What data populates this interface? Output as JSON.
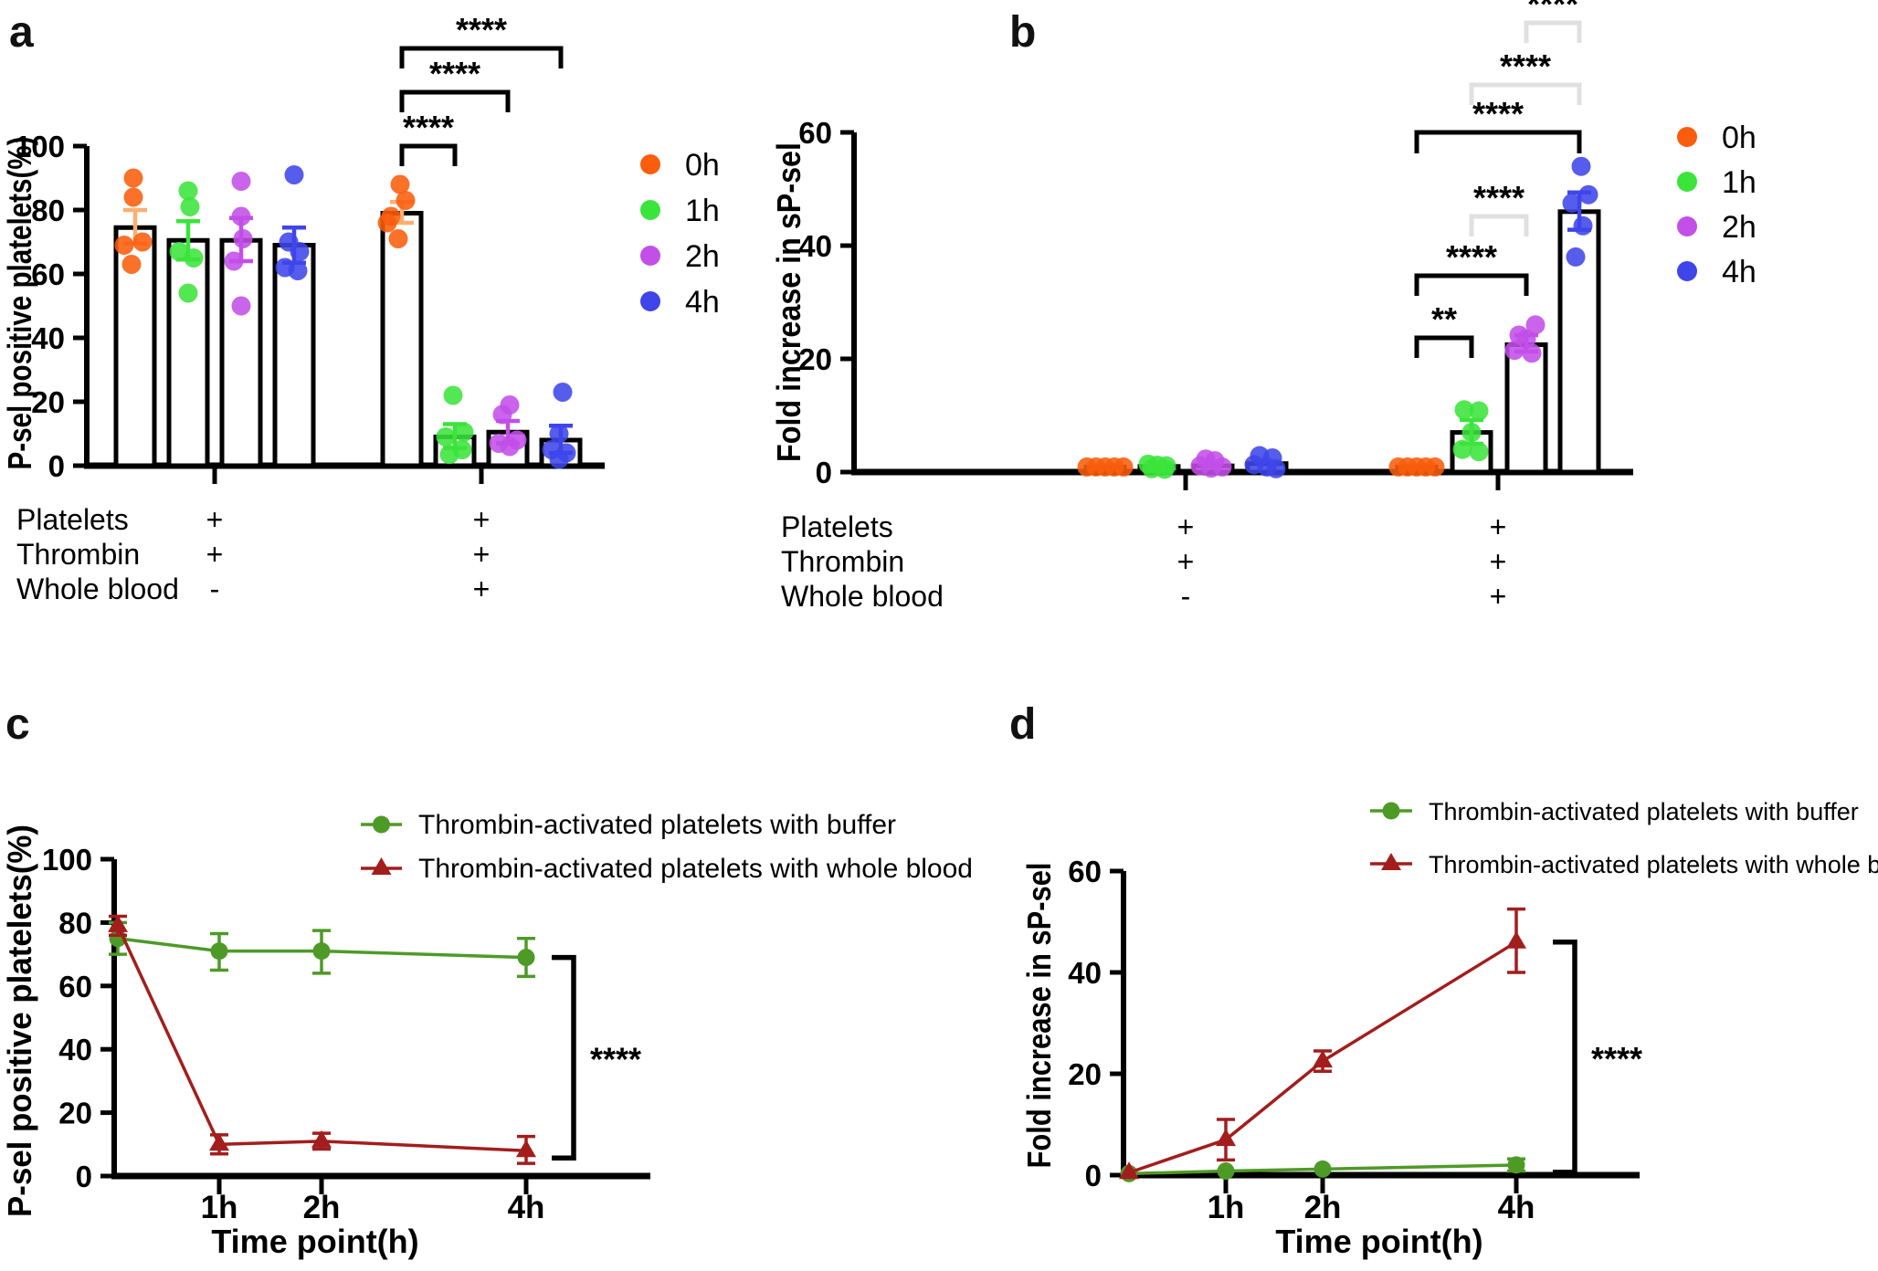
{
  "figure_title": "Platelet P-selectin figure",
  "chart_data": [
    {
      "id": "a",
      "panel_label": "a",
      "type": "bar",
      "ylabel": "P-sel positive platelets(%)",
      "ylim": [
        0,
        100
      ],
      "yticks": [
        0,
        20,
        40,
        60,
        80,
        100
      ],
      "legend": [
        {
          "label": "0h",
          "color": "#F95D0D"
        },
        {
          "label": "1h",
          "color": "#3BE43B"
        },
        {
          "label": "2h",
          "color": "#C24FE8"
        },
        {
          "label": "4h",
          "color": "#3F45E9"
        }
      ],
      "groups": [
        {
          "bars": [
            {
              "time": "0h",
              "color": "#F95D0D",
              "mean": 74.5,
              "err": [
                69.5,
                80
              ],
              "points": [
                [
                  -2,
                  90
                ],
                [
                  -2,
                  84
                ],
                [
                  -12,
                  69
                ],
                [
                  8,
                  70
                ],
                [
                  -4,
                  63
                ]
              ]
            },
            {
              "time": "1h",
              "color": "#3BE43B",
              "mean": 70.5,
              "err": [
                64.5,
                76.5
              ],
              "points": [
                [
                  0,
                  86
                ],
                [
                  2,
                  81
                ],
                [
                  -10,
                  67
                ],
                [
                  6,
                  65
                ],
                [
                  0,
                  54
                ]
              ]
            },
            {
              "time": "2h",
              "color": "#C24FE8",
              "mean": 70.5,
              "err": [
                64,
                77.5
              ],
              "points": [
                [
                  0,
                  89
                ],
                [
                  0,
                  78
                ],
                [
                  2,
                  71
                ],
                [
                  -8,
                  64
                ],
                [
                  0,
                  50
                ]
              ]
            },
            {
              "time": "4h",
              "color": "#3F45E9",
              "mean": 69,
              "err": [
                63.5,
                74.5
              ],
              "points": [
                [
                  0,
                  91
                ],
                [
                  -6,
                  70
                ],
                [
                  6,
                  67
                ],
                [
                  -10,
                  62
                ],
                [
                  4,
                  61
                ]
              ]
            }
          ]
        },
        {
          "bars": [
            {
              "time": "0h",
              "color": "#F95D0D",
              "mean": 79,
              "err": [
                76,
                82.5
              ],
              "points": [
                [
                  -2,
                  88
                ],
                [
                  4,
                  83
                ],
                [
                  -12,
                  78
                ],
                [
                  -16,
                  76
                ],
                [
                  -4,
                  71
                ]
              ]
            },
            {
              "time": "1h",
              "color": "#3BE43B",
              "mean": 9,
              "err": [
                5.5,
                13
              ],
              "points": [
                [
                  -2,
                  22
                ],
                [
                  10,
                  10.5
                ],
                [
                  -10,
                  9
                ],
                [
                  8,
                  5
                ],
                [
                  -6,
                  3.5
                ]
              ]
            },
            {
              "time": "2h",
              "color": "#C24FE8",
              "mean": 10.5,
              "err": [
                7,
                14
              ],
              "points": [
                [
                  2,
                  19
                ],
                [
                  -6,
                  16
                ],
                [
                  10,
                  8
                ],
                [
                  -10,
                  7
                ],
                [
                  2,
                  6
                ]
              ]
            },
            {
              "time": "4h",
              "color": "#3F45E9",
              "mean": 8,
              "err": [
                4,
                12.5
              ],
              "points": [
                [
                  2,
                  23
                ],
                [
                  -2,
                  10
                ],
                [
                  -10,
                  5
                ],
                [
                  6,
                  4
                ],
                [
                  -2,
                  2
                ]
              ]
            }
          ]
        }
      ],
      "conditions": [
        {
          "label": "Platelets",
          "values": [
            "+",
            "+"
          ]
        },
        {
          "label": "Thrombin",
          "values": [
            "+",
            "+"
          ]
        },
        {
          "label": "Whole blood",
          "values": [
            "-",
            "+"
          ]
        }
      ],
      "comparisons": [
        {
          "group": 1,
          "from": 0,
          "to": 1,
          "label": "****",
          "gray": false
        },
        {
          "group": 1,
          "from": 0,
          "to": 2,
          "label": "****",
          "gray": false
        },
        {
          "group": 1,
          "from": 0,
          "to": 3,
          "label": "****",
          "gray": false
        }
      ]
    },
    {
      "id": "b",
      "panel_label": "b",
      "type": "bar",
      "ylabel": "Fold increase in sP-sel",
      "ylim": [
        0,
        60
      ],
      "yticks": [
        0,
        20,
        40,
        60
      ],
      "legend": [
        {
          "label": "0h",
          "color": "#F95D0D"
        },
        {
          "label": "1h",
          "color": "#3BE43B"
        },
        {
          "label": "2h",
          "color": "#C24FE8"
        },
        {
          "label": "4h",
          "color": "#3F45E9"
        }
      ],
      "groups": [
        {
          "bars": [
            {
              "time": "0h",
              "color": "#F95D0D",
              "mean": 0.9,
              "err": null,
              "points": [
                [
                  -20,
                  0.9
                ],
                [
                  -10,
                  0.9
                ],
                [
                  0,
                  0.9
                ],
                [
                  10,
                  0.9
                ],
                [
                  20,
                  0.9
                ]
              ]
            },
            {
              "time": "1h",
              "color": "#3BE43B",
              "mean": 1.0,
              "err": null,
              "points": [
                [
                  -12,
                  1.4
                ],
                [
                  -2,
                  1.2
                ],
                [
                  8,
                  1.1
                ],
                [
                  -8,
                  0.6
                ],
                [
                  6,
                  0.5
                ]
              ]
            },
            {
              "time": "2h",
              "color": "#C24FE8",
              "mean": 1.1,
              "err": null,
              "points": [
                [
                  -8,
                  2.3
                ],
                [
                  2,
                  2.0
                ],
                [
                  -14,
                  1.1
                ],
                [
                  10,
                  0.9
                ],
                [
                  -2,
                  0.7
                ]
              ]
            },
            {
              "time": "4h",
              "color": "#3F45E9",
              "mean": 1.5,
              "err": null,
              "points": [
                [
                  -8,
                  2.9
                ],
                [
                  6,
                  2.5
                ],
                [
                  -14,
                  1.3
                ],
                [
                  0,
                  0.9
                ],
                [
                  10,
                  0.6
                ]
              ]
            }
          ]
        },
        {
          "bars": [
            {
              "time": "0h",
              "color": "#F95D0D",
              "mean": 0.9,
              "err": null,
              "points": [
                [
                  -20,
                  0.9
                ],
                [
                  -10,
                  0.9
                ],
                [
                  0,
                  0.9
                ],
                [
                  10,
                  0.9
                ],
                [
                  20,
                  0.9
                ]
              ]
            },
            {
              "time": "1h",
              "color": "#3BE43B",
              "mean": 7,
              "err": [
                5,
                9.2
              ],
              "points": [
                [
                  -8,
                  11
                ],
                [
                  8,
                  10.8
                ],
                [
                  0,
                  7
                ],
                [
                  -10,
                  4
                ],
                [
                  8,
                  3.6
                ]
              ]
            },
            {
              "time": "2h",
              "color": "#C24FE8",
              "mean": 22.5,
              "err": [
                21.3,
                24.2
              ],
              "points": [
                [
                  10,
                  26
                ],
                [
                  -8,
                  24.2
                ],
                [
                  0,
                  23.5
                ],
                [
                  -13,
                  21.5
                ],
                [
                  6,
                  21
                ]
              ]
            },
            {
              "time": "4h",
              "color": "#3F45E9",
              "mean": 46,
              "err": [
                42.8,
                49.4
              ],
              "points": [
                [
                  2,
                  54
                ],
                [
                  10,
                  49
                ],
                [
                  -8,
                  47.5
                ],
                [
                  4,
                  43.5
                ],
                [
                  -4,
                  38
                ]
              ]
            }
          ]
        }
      ],
      "conditions": [
        {
          "label": "Platelets",
          "values": [
            "+",
            "+"
          ]
        },
        {
          "label": "Thrombin",
          "values": [
            "+",
            "+"
          ]
        },
        {
          "label": "Whole blood",
          "values": [
            "-",
            "+"
          ]
        }
      ],
      "comparisons": [
        {
          "group": 1,
          "from": 0,
          "to": 1,
          "label": "**",
          "gray": false
        },
        {
          "group": 1,
          "from": 0,
          "to": 2,
          "label": "****",
          "gray": false
        },
        {
          "group": 1,
          "from": 0,
          "to": 3,
          "label": "****",
          "gray": false
        },
        {
          "group": 1,
          "from": 1,
          "to": 2,
          "label": "****",
          "gray": true
        },
        {
          "group": 1,
          "from": 1,
          "to": 3,
          "label": "****",
          "gray": true
        },
        {
          "group": 1,
          "from": 2,
          "to": 3,
          "label": "****",
          "gray": true
        }
      ]
    },
    {
      "id": "c",
      "panel_label": "c",
      "type": "line",
      "ylabel": "P-sel positive platelets(%)",
      "xlabel": "Time point(h)",
      "ylim": [
        0,
        100
      ],
      "yticks": [
        0,
        20,
        40,
        60,
        80,
        100
      ],
      "x_hours": [
        0,
        1,
        2,
        4
      ],
      "xtick_labels": [
        "1h",
        "2h",
        "4h"
      ],
      "series": [
        {
          "name": "Thrombin-activated platelets with buffer",
          "color": "#4E9A27",
          "marker": "circle",
          "values": [
            75,
            71,
            71,
            69
          ],
          "err": [
            [
              70,
              80
            ],
            [
              65,
              76.5
            ],
            [
              64,
              77.5
            ],
            [
              63,
              75
            ]
          ]
        },
        {
          "name": "Thrombin-activated platelets with whole blood",
          "color": "#A31D1D",
          "marker": "triangle",
          "values": [
            79,
            10,
            11,
            8
          ],
          "err": [
            [
              76,
              82
            ],
            [
              7,
              13
            ],
            [
              8.5,
              13.5
            ],
            [
              4,
              12.5
            ]
          ]
        }
      ],
      "comparison": {
        "label": "****"
      }
    },
    {
      "id": "d",
      "panel_label": "d",
      "type": "line",
      "ylabel": "Fold increase in sP-sel",
      "xlabel": "Time point(h)",
      "ylim": [
        0,
        60
      ],
      "yticks": [
        0,
        20,
        40,
        60
      ],
      "x_hours": [
        0,
        1,
        2,
        4
      ],
      "xtick_labels": [
        "1h",
        "2h",
        "4h"
      ],
      "series": [
        {
          "name": "Thrombin-activated platelets with buffer",
          "color": "#4E9A27",
          "marker": "circle",
          "values": [
            0.3,
            0.8,
            1.2,
            2
          ],
          "err": [
            null,
            null,
            null,
            [
              0.8,
              3.2
            ]
          ]
        },
        {
          "name": "Thrombin-activated platelets with whole blood",
          "color": "#A31D1D",
          "marker": "triangle",
          "values": [
            0.5,
            7,
            22.5,
            46
          ],
          "err": [
            null,
            [
              3,
              11
            ],
            [
              20.5,
              24.5
            ],
            [
              40,
              52.5
            ]
          ]
        }
      ],
      "comparison": {
        "label": "****"
      }
    }
  ]
}
